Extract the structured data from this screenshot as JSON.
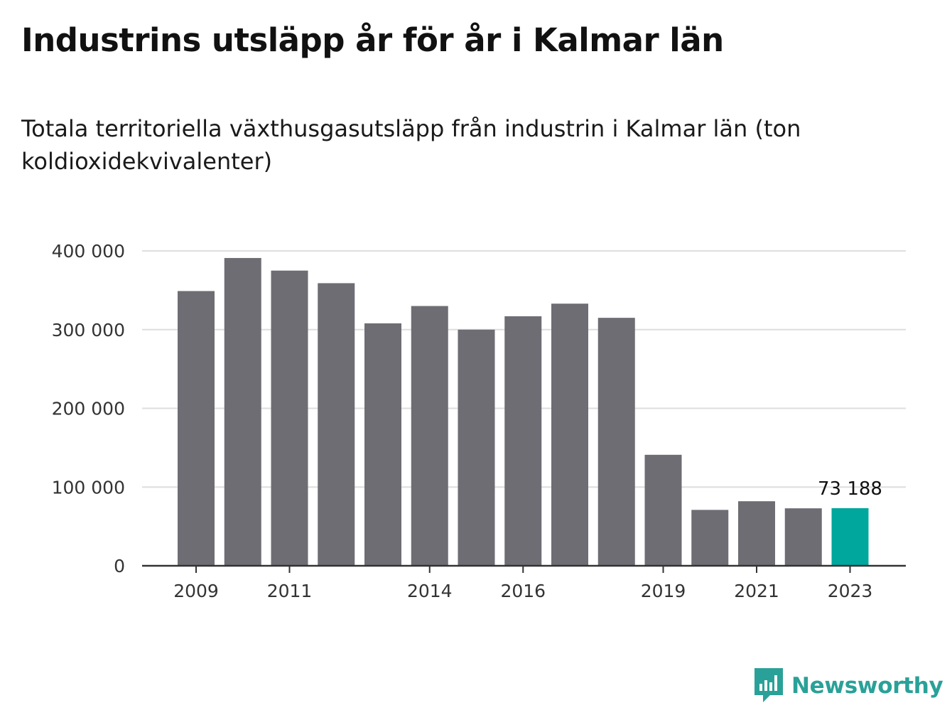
{
  "title": "Industrins utsläpp år för år i Kalmar län",
  "subtitle": "Totala territoriella växthusgasutsläpp från industrin i Kalmar län (ton koldioxidekvivalenter)",
  "brand": {
    "name": "Newsworthy",
    "color": "#2aa198"
  },
  "chart_data": {
    "type": "bar",
    "categories": [
      "2009",
      "2010",
      "2011",
      "2012",
      "2013",
      "2014",
      "2015",
      "2016",
      "2017",
      "2018",
      "2019",
      "2020",
      "2021",
      "2022",
      "2023"
    ],
    "values": [
      349000,
      391000,
      375000,
      359000,
      308000,
      330000,
      300000,
      317000,
      333000,
      315000,
      141000,
      71000,
      82000,
      73000,
      73188
    ],
    "x_tick_labels": [
      "2009",
      "2011",
      "2014",
      "2016",
      "2019",
      "2021",
      "2023"
    ],
    "y_ticks": [
      0,
      100000,
      200000,
      300000,
      400000
    ],
    "y_tick_labels": [
      "0",
      "100 000",
      "200 000",
      "300 000",
      "400 000"
    ],
    "ylim": [
      0,
      400000
    ],
    "grid": true,
    "highlight": {
      "category": "2023",
      "label": "73 188"
    },
    "colors": {
      "bar": "#6e6d73",
      "highlight": "#00a79d",
      "grid": "#dedede",
      "axis": "#333333"
    }
  }
}
